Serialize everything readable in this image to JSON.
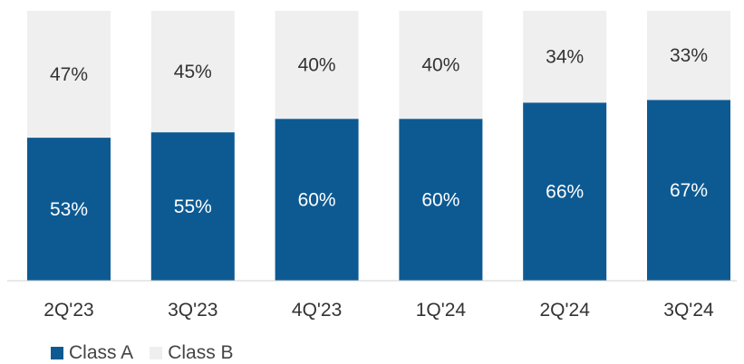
{
  "chart_data": {
    "type": "bar",
    "stacked": true,
    "percent_stacked": true,
    "categories": [
      "2Q'23",
      "3Q'23",
      "4Q'23",
      "1Q'24",
      "2Q'24",
      "3Q'24"
    ],
    "series": [
      {
        "name": "Class A",
        "values": [
          53,
          55,
          60,
          60,
          66,
          67
        ],
        "color": "#0d5a93"
      },
      {
        "name": "Class B",
        "values": [
          47,
          45,
          40,
          40,
          34,
          33
        ],
        "color": "#efefef"
      }
    ],
    "data_labels": {
      "Class A": [
        "53%",
        "55%",
        "60%",
        "60%",
        "66%",
        "67%"
      ],
      "Class B": [
        "47%",
        "45%",
        "40%",
        "40%",
        "34%",
        "33%"
      ]
    },
    "ylim": [
      0,
      100
    ],
    "grid": false,
    "legend_position": "bottom-left"
  }
}
